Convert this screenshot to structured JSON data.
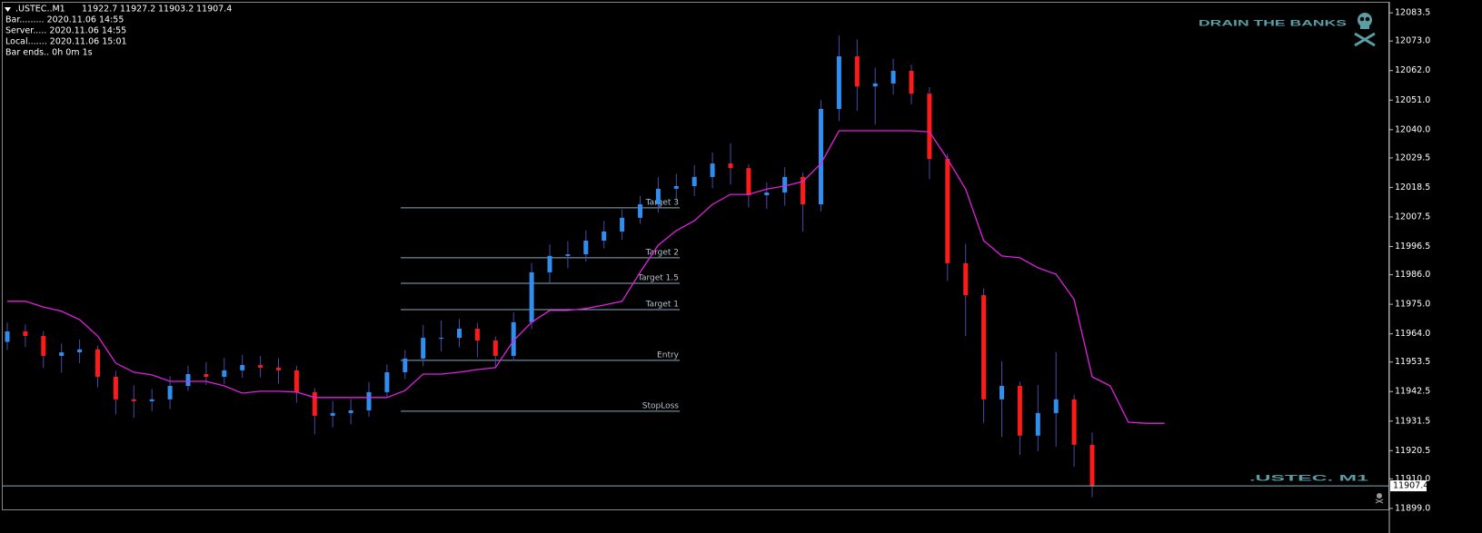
{
  "chart_data": {
    "type": "candlestick",
    "title": ".USTEC..M1",
    "info": [
      "Bar......... 2020.11.06 14:55",
      "Server..... 2020.11.06 14:55",
      "Local....... 2020.11.06 15:01",
      "Bar ends.. 0h 0m 1s"
    ],
    "brand": "DRAIN THE BANKS",
    "watermark": ".USTEC. M1",
    "up_color": "#2f8ff0",
    "down_color": "#ff1a1a",
    "wick_color": "#4b4ba8",
    "open": [
      11961.0,
      11964.9,
      11963.2,
      11955.8,
      11957.1,
      11958.2,
      11948.0,
      11939.6,
      11938.9,
      11939.6,
      11944.6,
      11949.0,
      11948.0,
      11950.4,
      11952.4,
      11951.4,
      11950.4,
      11942.3,
      11933.5,
      11934.5,
      11935.5,
      11942.3,
      11949.7,
      11954.8,
      11962.5,
      11962.5,
      11965.9,
      11961.5,
      11955.8,
      11968.3,
      11986.9,
      11993.0,
      11993.6,
      11998.7,
      12002.1,
      12007.2,
      12012.2,
      12018.0,
      12019.0,
      12022.4,
      12027.4,
      12025.7,
      12015.6,
      12016.6,
      12022.4,
      12012.2,
      12047.7,
      12067.3,
      12056.1,
      12057.2,
      12061.9,
      12053.4,
      12029.1,
      11990.3,
      11978.4,
      11939.6,
      11944.6,
      11926.1,
      11934.5,
      11939.6,
      11922.7,
      null,
      null,
      null,
      null
    ],
    "high": [
      11968.2,
      11967.5,
      11965.0,
      11960.4,
      11961.9,
      11959.6,
      11950.2,
      11944.8,
      11943.5,
      11948.3,
      11952.1,
      11953.4,
      11955.0,
      11956.2,
      11955.7,
      11954.9,
      11952.0,
      11943.7,
      11939.0,
      11939.8,
      11946.0,
      11952.6,
      11958.0,
      11967.3,
      11969.0,
      11969.5,
      11968.1,
      11963.0,
      11972.0,
      11990.4,
      11997.3,
      11998.5,
      12002.5,
      12006.0,
      12010.3,
      12015.4,
      12022.3,
      12023.6,
      12026.8,
      12031.5,
      12034.9,
      12027.1,
      12020.3,
      12026.0,
      12024.1,
      12051.0,
      12075.0,
      12073.6,
      12063.1,
      12066.4,
      12064.2,
      12055.8,
      12031.0,
      11997.5,
      11981.0,
      11953.8,
      11946.2,
      11945.0,
      11957.2,
      11941.4,
      11927.2,
      null,
      null,
      null,
      null
    ],
    "low": [
      11958.0,
      11959.1,
      11951.2,
      11949.5,
      11953.0,
      11944.1,
      11934.0,
      11932.7,
      11935.2,
      11936.0,
      11942.7,
      11944.9,
      11945.3,
      11947.6,
      11947.8,
      11945.5,
      11938.4,
      11926.6,
      11929.2,
      11930.4,
      11933.1,
      11940.5,
      11947.2,
      11951.9,
      11957.4,
      11959.0,
      11955.3,
      11951.2,
      11953.9,
      11965.8,
      11983.1,
      11988.4,
      11990.9,
      11995.8,
      11999.0,
      12004.9,
      12009.1,
      12014.2,
      12015.3,
      12018.2,
      12019.6,
      12011.0,
      12010.5,
      12011.7,
      12002.0,
      12009.6,
      12043.2,
      12047.0,
      12041.9,
      12053.0,
      12049.5,
      12021.6,
      11983.7,
      11963.2,
      11930.9,
      11925.7,
      11918.9,
      11920.3,
      11922.0,
      11914.6,
      11903.2,
      null,
      null,
      null,
      null
    ],
    "close": [
      11964.9,
      11963.2,
      11955.8,
      11957.1,
      11958.2,
      11948.0,
      11939.6,
      11938.9,
      11939.6,
      11944.6,
      11949.0,
      11948.0,
      11950.4,
      11952.4,
      11951.4,
      11950.4,
      11942.3,
      11933.5,
      11934.5,
      11935.5,
      11942.3,
      11949.7,
      11954.8,
      11962.5,
      11962.5,
      11965.9,
      11961.5,
      11955.8,
      11968.3,
      11986.9,
      11993.0,
      11993.6,
      11998.7,
      12002.1,
      12007.2,
      12012.2,
      12018.0,
      12019.0,
      12022.4,
      12027.4,
      12025.7,
      12015.6,
      12016.6,
      12022.4,
      12012.2,
      12047.7,
      12067.3,
      12056.1,
      12057.2,
      12061.9,
      12053.4,
      12029.1,
      11990.3,
      11978.4,
      11939.6,
      11944.6,
      11926.1,
      11934.5,
      11939.6,
      11922.7,
      11907.4,
      null,
      null,
      null,
      null
    ],
    "line": {
      "color": "#e020e0",
      "values": [
        11976.1,
        11976.1,
        11974.0,
        11972.4,
        11969.3,
        11963.2,
        11953.1,
        11949.7,
        11948.7,
        11946.3,
        11946.3,
        11946.3,
        11944.6,
        11941.9,
        11942.6,
        11942.6,
        11942.3,
        11940.3,
        11940.3,
        11940.3,
        11940.3,
        11940.3,
        11942.9,
        11949.0,
        11949.0,
        11949.7,
        11950.7,
        11951.4,
        11961.5,
        11968.3,
        11972.7,
        11972.7,
        11973.4,
        11974.7,
        11976.1,
        11986.9,
        11997.0,
        12002.4,
        12006.1,
        12012.2,
        12015.9,
        12015.9,
        12017.9,
        12019.0,
        12020.7,
        12027.4,
        12039.6,
        12039.6,
        12039.6,
        12039.6,
        12039.6,
        12039.2,
        12029.1,
        12017.9,
        11998.7,
        11993.0,
        11992.3,
        11988.6,
        11986.2,
        11976.8,
        11948.0,
        11944.6,
        11931.1,
        11930.7,
        11930.7
      ]
    },
    "levels": [
      {
        "name": "Target 3",
        "value": 12010.9
      },
      {
        "name": "Target 2",
        "value": 11992.3
      },
      {
        "name": "Target 1.5",
        "value": 11982.8
      },
      {
        "name": "Target 1",
        "value": 11973.0
      },
      {
        "name": "Entry",
        "value": 11954.1
      },
      {
        "name": "StopLoss",
        "value": 11935.2
      }
    ],
    "level_color": "#8aa8bc",
    "ylim": [
      11898.3,
      12087.6
    ],
    "yticks": [
      12083.5,
      {
        "value": 12073.0,
        "label": "12073.0"
      },
      {
        "value": 12062.0,
        "label": "12062.0"
      },
      {
        "value": 12051.0,
        "label": "12051.0"
      },
      {
        "value": 12040.0,
        "label": "12040.0"
      },
      12029.5,
      12018.5,
      12007.5,
      11996.5,
      {
        "value": 11986.0,
        "label": "11986.0"
      },
      {
        "value": 11975.0,
        "label": "11975.0"
      },
      {
        "value": 11964.0,
        "label": "11964.0"
      },
      11953.5,
      11942.5,
      11931.5,
      11920.5,
      {
        "value": 11910.0,
        "label": "11910.0"
      },
      {
        "value": 11899.0,
        "label": "11899.0"
      }
    ],
    "grid": false
  }
}
